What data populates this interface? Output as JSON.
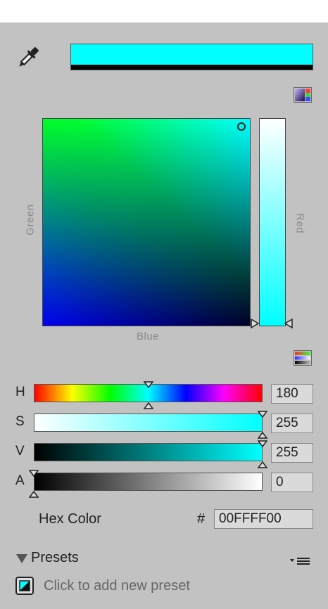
{
  "colors": {
    "current": "#00ffff",
    "panel_bg": "#c2c2c2"
  },
  "picker": {
    "x_axis_label": "Blue",
    "y_axis_label": "Green",
    "strip_label": "Red"
  },
  "sliders": [
    {
      "label": "H",
      "value": "180",
      "fraction": 0.5
    },
    {
      "label": "S",
      "value": "255",
      "fraction": 1.0
    },
    {
      "label": "V",
      "value": "255",
      "fraction": 1.0
    },
    {
      "label": "A",
      "value": "0",
      "fraction": 0.0
    }
  ],
  "hex": {
    "label": "Hex Color",
    "prefix": "#",
    "value": "00FFFF00"
  },
  "presets": {
    "title": "Presets",
    "add_label": "Click to add new preset"
  },
  "icons": {
    "eyedropper": "eyedropper-icon",
    "picker_mode": "color-mode-icon",
    "slider_mode": "slider-mode-icon",
    "presets_menu": "menu-icon",
    "preset_swatch": "preset-swatch-icon"
  }
}
